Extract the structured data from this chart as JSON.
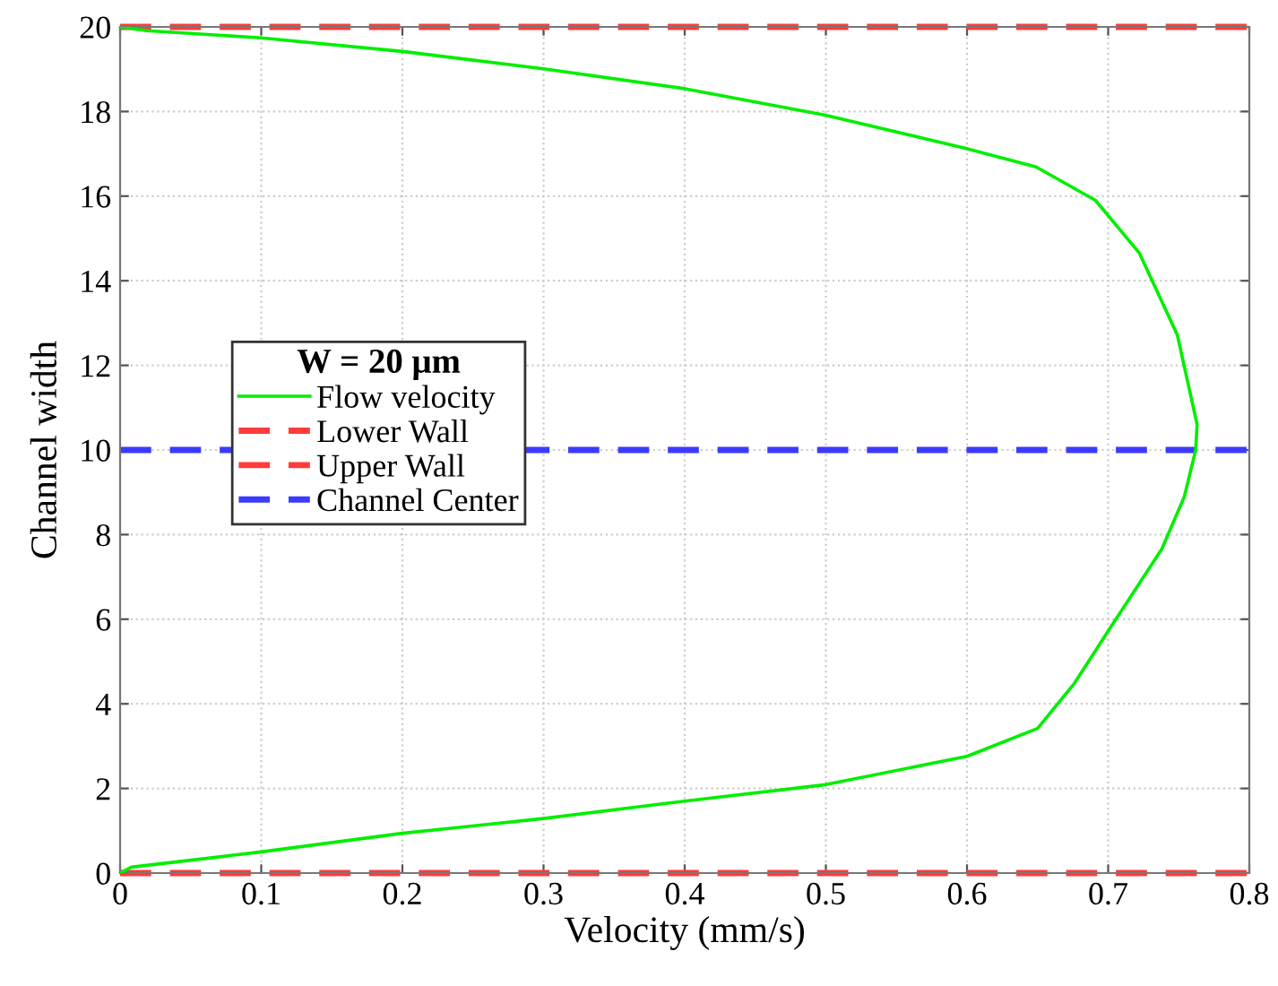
{
  "chart_data": {
    "type": "line",
    "xlabel": "Velocity (mm/s)",
    "ylabel": "Channel width",
    "legend_title": "W = 20 μm",
    "series": [
      {
        "name": "Flow velocity",
        "color": "#00ee00",
        "x": [
          0,
          0.008,
          0.1,
          0.2,
          0.3,
          0.4,
          0.5,
          0.6,
          0.65,
          0.676,
          0.7,
          0.738,
          0.754,
          0.762,
          0.763,
          0.749,
          0.722,
          0.691,
          0.649,
          0.599,
          0.499,
          0.4,
          0.3,
          0.2,
          0.1,
          0.019,
          0
        ],
        "values": [
          0,
          0.14,
          0.5,
          0.94,
          1.29,
          1.7,
          2.09,
          2.76,
          3.42,
          4.48,
          5.72,
          7.66,
          8.9,
          10.0,
          10.6,
          12.72,
          14.66,
          15.9,
          16.69,
          17.13,
          17.92,
          18.54,
          19.01,
          19.42,
          19.74,
          19.91,
          20
        ]
      }
    ],
    "ref_lines": [
      {
        "axis": "y",
        "value": 0,
        "label": "Lower Wall",
        "color": "#ff3b3b",
        "line_style": "dashed"
      },
      {
        "axis": "y",
        "value": 20,
        "label": "Upper Wall",
        "color": "#ff3b3b",
        "line_style": "dashed"
      },
      {
        "axis": "y",
        "value": 10,
        "label": "Channel Center",
        "color": "#3b3bff",
        "line_style": "dashed"
      }
    ],
    "xlim": [
      0,
      0.8
    ],
    "xticks": [
      0,
      0.1,
      0.2,
      0.3,
      0.4,
      0.5,
      0.6,
      0.7,
      0.8
    ],
    "ylim": [
      0,
      20
    ],
    "yticks": [
      0,
      2,
      4,
      6,
      8,
      10,
      12,
      14,
      16,
      18,
      20
    ],
    "grid": true,
    "legend": "left",
    "line_style": "solid",
    "marker": "none"
  }
}
